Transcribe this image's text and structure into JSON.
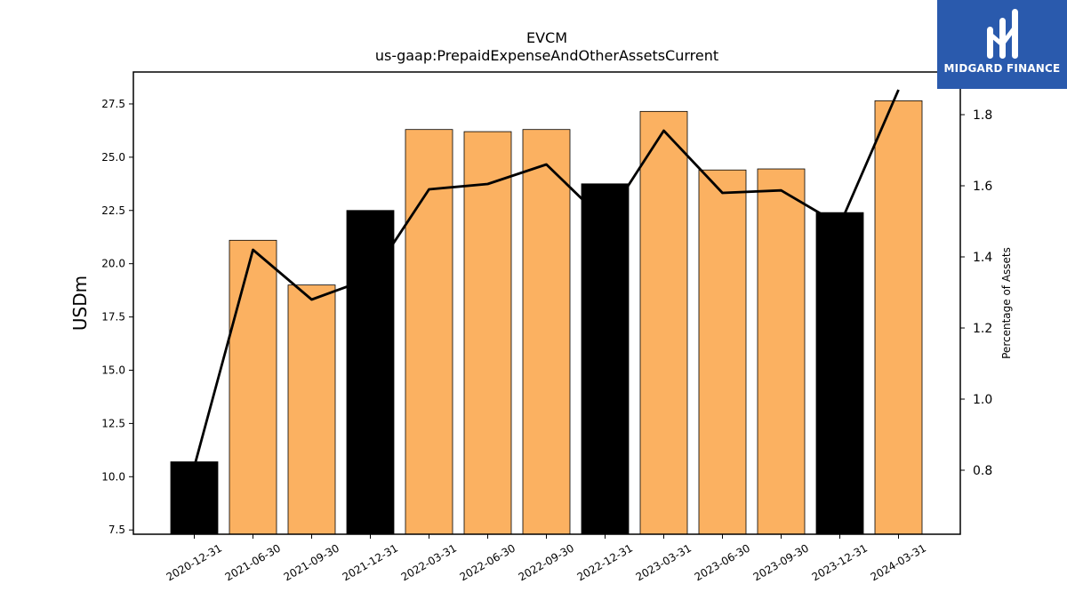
{
  "chart_data": {
    "type": "bar",
    "title": "EVCM",
    "subtitle": "us-gaap:PrepaidExpenseAndOtherAssetsCurrent",
    "ylabel": "USDm",
    "ylabel_right": "Percentage of Assets",
    "categories": [
      "2020-12-31",
      "2021-06-30",
      "2021-09-30",
      "2021-12-31",
      "2022-03-31",
      "2022-06-30",
      "2022-09-30",
      "2022-12-31",
      "2023-03-31",
      "2023-06-30",
      "2023-09-30",
      "2023-12-31",
      "2024-03-31"
    ],
    "series": [
      {
        "type": "bar",
        "values": [
          10.7,
          21.1,
          19.0,
          22.5,
          26.3,
          26.2,
          26.3,
          23.75,
          27.15,
          24.4,
          24.45,
          22.4,
          27.65
        ],
        "colors": [
          "#000000",
          "#fbb161",
          "#fbb161",
          "#000000",
          "#fbb161",
          "#fbb161",
          "#fbb161",
          "#000000",
          "#fbb161",
          "#fbb161",
          "#fbb161",
          "#000000",
          "#fbb161"
        ]
      },
      {
        "type": "line",
        "axis": "right",
        "values": [
          0.81,
          1.42,
          1.28,
          1.34,
          1.59,
          1.605,
          1.66,
          1.5,
          1.755,
          1.58,
          1.587,
          1.49,
          1.87
        ],
        "color": "#000000"
      }
    ],
    "ylim": [
      7.3,
      29.0
    ],
    "ylim_right": [
      0.62,
      1.92
    ],
    "yticks": [
      "7.5",
      "10.0",
      "12.5",
      "15.0",
      "17.5",
      "20.0",
      "22.5",
      "25.0",
      "27.5"
    ],
    "yticks_right": [
      "0.8",
      "1.0",
      "1.2",
      "1.4",
      "1.6",
      "1.8"
    ],
    "grid": false,
    "legend": "none"
  },
  "logo": {
    "text": "MIDGARD FINANCE",
    "icon": "midgard-logo-icon"
  }
}
